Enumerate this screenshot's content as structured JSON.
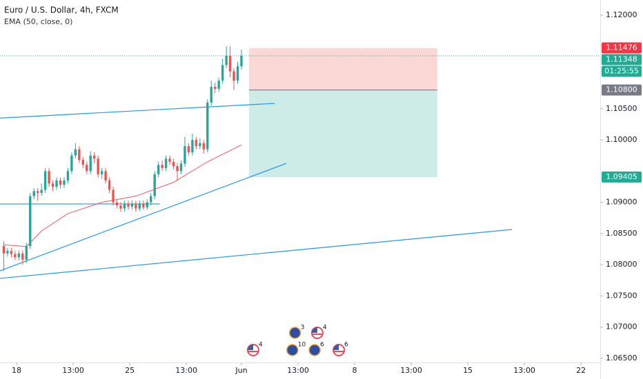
{
  "chart_data": {
    "type": "candlestick",
    "title": "Euro / U.S. Dollar, 4h, FXCM",
    "subtitle": "EMA (50, close, 0)",
    "xlim": [
      -1,
      158.1
    ],
    "ylim": [
      1.06433,
      1.12243
    ],
    "xticks": [
      {
        "value": 3.4,
        "label": "18"
      },
      {
        "value": 18.4,
        "label": "13:00"
      },
      {
        "value": 33.4,
        "label": "25"
      },
      {
        "value": 48.4,
        "label": "13:00"
      },
      {
        "value": 63,
        "label": "Jun"
      },
      {
        "value": 78,
        "label": "13:00"
      },
      {
        "value": 93,
        "label": "8"
      },
      {
        "value": 108,
        "label": "13:00"
      },
      {
        "value": 123,
        "label": "15"
      },
      {
        "value": 138,
        "label": "13:00"
      },
      {
        "value": 153,
        "label": "22"
      }
    ],
    "yticks": [
      {
        "value": 1.065,
        "label": "1.06500"
      },
      {
        "value": 1.07,
        "label": "1.07000"
      },
      {
        "value": 1.075,
        "label": "1.07500"
      },
      {
        "value": 1.08,
        "label": "1.08000"
      },
      {
        "value": 1.085,
        "label": "1.08500"
      },
      {
        "value": 1.09,
        "label": "1.09000"
      },
      {
        "value": 1.1,
        "label": "1.10000"
      },
      {
        "value": 1.105,
        "label": "1.10500"
      },
      {
        "value": 1.12,
        "label": "1.12000"
      }
    ],
    "up_color": "#26a69a",
    "down_color": "#ef5350",
    "open": [
      1.083,
      1.0818,
      1.0822,
      1.0817,
      1.0812,
      1.0818,
      1.0808,
      1.083,
      1.091,
      1.0918,
      1.0915,
      1.092,
      1.095,
      1.093,
      1.0925,
      1.0935,
      1.0928,
      1.0935,
      1.095,
      1.0975,
      1.0985,
      1.0968,
      1.096,
      1.095,
      1.0975,
      1.097,
      1.0945,
      1.095,
      1.0935,
      1.092,
      1.09,
      1.0895,
      1.089,
      1.0898,
      1.0893,
      1.0898,
      1.089,
      1.0898,
      1.0892,
      1.09,
      1.091,
      1.0945,
      1.096,
      1.0955,
      1.097,
      1.0965,
      1.0958,
      1.095,
      1.0962,
      1.099,
      1.098,
      1.1,
      1.099,
      1.0995,
      1.0985,
      1.106,
      1.1085,
      1.1082,
      1.1095,
      1.112,
      1.1135,
      1.111,
      1.1095,
      1.1118
    ],
    "high": [
      1.0838,
      1.0827,
      1.0827,
      1.0822,
      1.0823,
      1.0823,
      1.0835,
      1.0915,
      1.0923,
      1.0923,
      1.093,
      1.0955,
      1.0955,
      1.0935,
      1.094,
      1.094,
      1.094,
      1.0955,
      1.098,
      1.0995,
      1.099,
      1.0973,
      1.0965,
      1.0982,
      1.098,
      1.0975,
      1.0955,
      1.0955,
      1.094,
      1.0925,
      1.0905,
      1.09,
      1.0903,
      1.0903,
      1.0903,
      1.0902,
      1.0903,
      1.0903,
      1.0905,
      1.0915,
      1.095,
      1.0965,
      1.0967,
      1.0975,
      1.0975,
      1.097,
      1.0963,
      1.0967,
      1.1005,
      1.0995,
      1.101,
      1.1005,
      1.1003,
      1.1,
      1.1065,
      1.1095,
      1.1092,
      1.11,
      1.113,
      1.115,
      1.115,
      1.1115,
      1.1125,
      1.1145
    ],
    "low": [
      1.079,
      1.0813,
      1.0812,
      1.0807,
      1.0807,
      1.08,
      1.0803,
      1.0825,
      1.0905,
      1.0903,
      1.091,
      1.0915,
      1.0925,
      1.0918,
      1.092,
      1.0922,
      1.0923,
      1.093,
      1.0945,
      1.097,
      1.0963,
      1.0955,
      1.0945,
      1.0945,
      1.0963,
      1.094,
      1.0938,
      1.093,
      1.0915,
      1.0895,
      1.089,
      1.0885,
      1.0885,
      1.0888,
      1.0888,
      1.0885,
      1.0886,
      1.0888,
      1.0888,
      1.0895,
      1.0905,
      1.094,
      1.095,
      1.095,
      1.096,
      1.0953,
      1.0935,
      1.0945,
      1.0957,
      1.0975,
      1.0975,
      1.0985,
      1.0985,
      1.0978,
      1.098,
      1.1055,
      1.1075,
      1.1077,
      1.109,
      1.1115,
      1.11,
      1.108,
      1.109,
      1.1113
    ],
    "close": [
      1.0818,
      1.0822,
      1.0817,
      1.0812,
      1.0818,
      1.0808,
      1.083,
      1.091,
      1.0918,
      1.0915,
      1.092,
      1.095,
      1.093,
      1.0925,
      1.0935,
      1.0928,
      1.0935,
      1.095,
      1.0975,
      1.0985,
      1.0968,
      1.096,
      1.095,
      1.0975,
      1.097,
      1.0945,
      1.095,
      1.0935,
      1.092,
      1.09,
      1.0895,
      1.089,
      1.0898,
      1.0893,
      1.0898,
      1.089,
      1.0898,
      1.0892,
      1.09,
      1.091,
      1.0945,
      1.096,
      1.0955,
      1.097,
      1.0965,
      1.0958,
      1.095,
      1.0962,
      1.099,
      1.098,
      1.1,
      1.099,
      1.0995,
      1.0985,
      1.106,
      1.1085,
      1.1082,
      1.1095,
      1.112,
      1.1135,
      1.111,
      1.1095,
      1.1118,
      1.11348
    ],
    "ema": {
      "color": "#f7525f",
      "x": [
        0,
        6,
        10,
        17,
        26,
        35,
        45,
        54,
        63
      ],
      "values": [
        1.0832,
        1.0829,
        1.0854,
        1.0882,
        1.09,
        1.091,
        1.0932,
        1.0965,
        1.0992
      ]
    },
    "trendline_color": "#2196f3",
    "trendlines": [
      {
        "x": [
          -1,
          71.8
        ],
        "y": [
          1.1035,
          1.10586
        ]
      },
      {
        "x": [
          -1,
          41.4
        ],
        "y": [
          1.08974,
          1.08974
        ]
      },
      {
        "x": [
          -1,
          74.9
        ],
        "y": [
          1.07902,
          1.09625
        ]
      },
      {
        "x": [
          -1,
          134.7
        ],
        "y": [
          1.07781,
          1.08565
        ]
      }
    ],
    "position": {
      "x": [
        65,
        114.9
      ],
      "stop": 1.1147,
      "entry": 1.108,
      "target": 1.09405,
      "stop_color": "#fbd7d5",
      "target_color": "#cdebe7"
    },
    "badges": [
      {
        "value": 1.11476,
        "label": "1.11476",
        "color": "#f23645"
      },
      {
        "value": 1.11348,
        "label": "1.11348",
        "color": "#22ab94"
      },
      {
        "label": "01:25:55",
        "color": "#22ab94"
      },
      {
        "value": 1.108,
        "label": "1.10800",
        "color": "#787b86"
      },
      {
        "value": 1.09405,
        "label": "1.09405",
        "color": "#22ab94"
      }
    ],
    "events": [
      {
        "x": 66.1,
        "flag": "us",
        "count": 4
      },
      {
        "x": 76.5,
        "flag": "eu",
        "count": 10
      },
      {
        "x": 77.2,
        "flag": "eu",
        "count": 3
      },
      {
        "x": 82.4,
        "flag": "eu",
        "count": 6
      },
      {
        "x": 83.1,
        "flag": "us",
        "count": 4
      },
      {
        "x": 88.8,
        "flag": "us",
        "count": 6
      }
    ]
  }
}
